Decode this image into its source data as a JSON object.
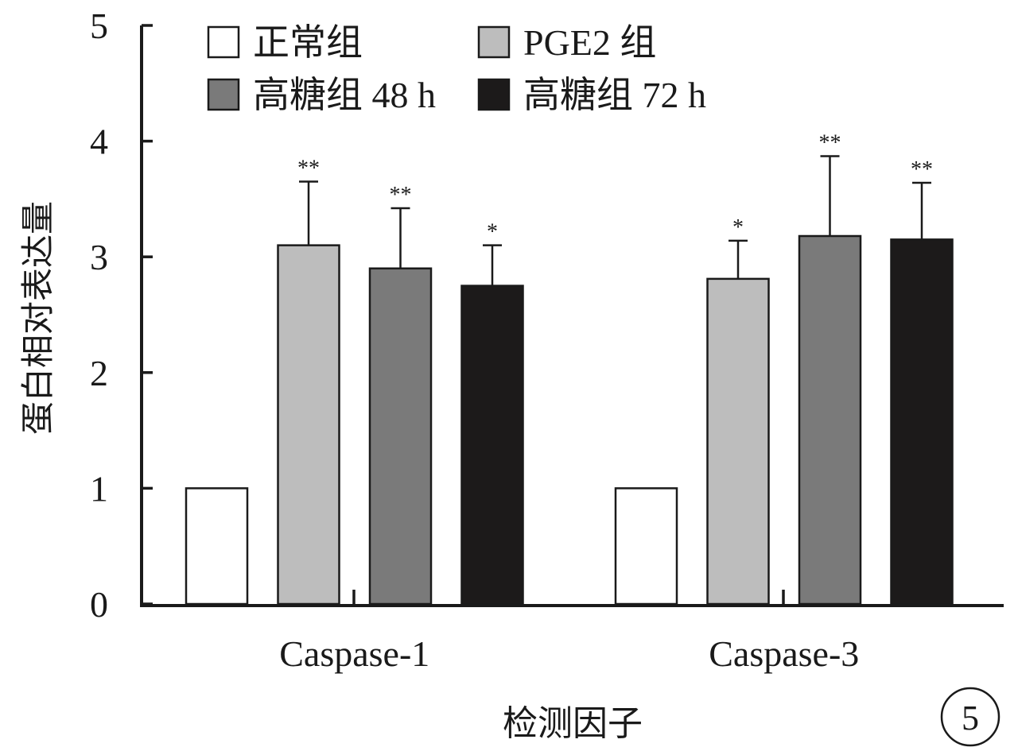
{
  "chart_data": {
    "type": "bar",
    "xlabel": "检测因子",
    "ylabel": "蛋白相对表达量",
    "ylim": [
      0,
      5
    ],
    "yticks": [
      "0",
      "1",
      "2",
      "3",
      "4",
      "5"
    ],
    "categories": [
      "Caspase-1",
      "Caspase-3"
    ],
    "series": [
      {
        "name": "正常组",
        "color": "#ffffff",
        "values": [
          1.0,
          1.0
        ],
        "errors": [
          null,
          null
        ],
        "sig": [
          "",
          ""
        ]
      },
      {
        "name": "PGE2 组",
        "color": "#bdbdbd",
        "values": [
          3.1,
          2.81
        ],
        "errors": [
          0.55,
          0.33
        ],
        "sig": [
          "**",
          "*"
        ]
      },
      {
        "name": "高糖组 48 h",
        "color": "#7a7a7a",
        "values": [
          2.9,
          3.18
        ],
        "errors": [
          0.52,
          0.69
        ],
        "sig": [
          "**",
          "**"
        ]
      },
      {
        "name": "高糖组 72 h",
        "color": "#1c1a1a",
        "values": [
          2.75,
          3.15
        ],
        "errors": [
          0.35,
          0.49
        ],
        "sig": [
          "*",
          "**"
        ]
      }
    ],
    "legend_position": "top-left",
    "grid": false,
    "panel_label": "5"
  }
}
